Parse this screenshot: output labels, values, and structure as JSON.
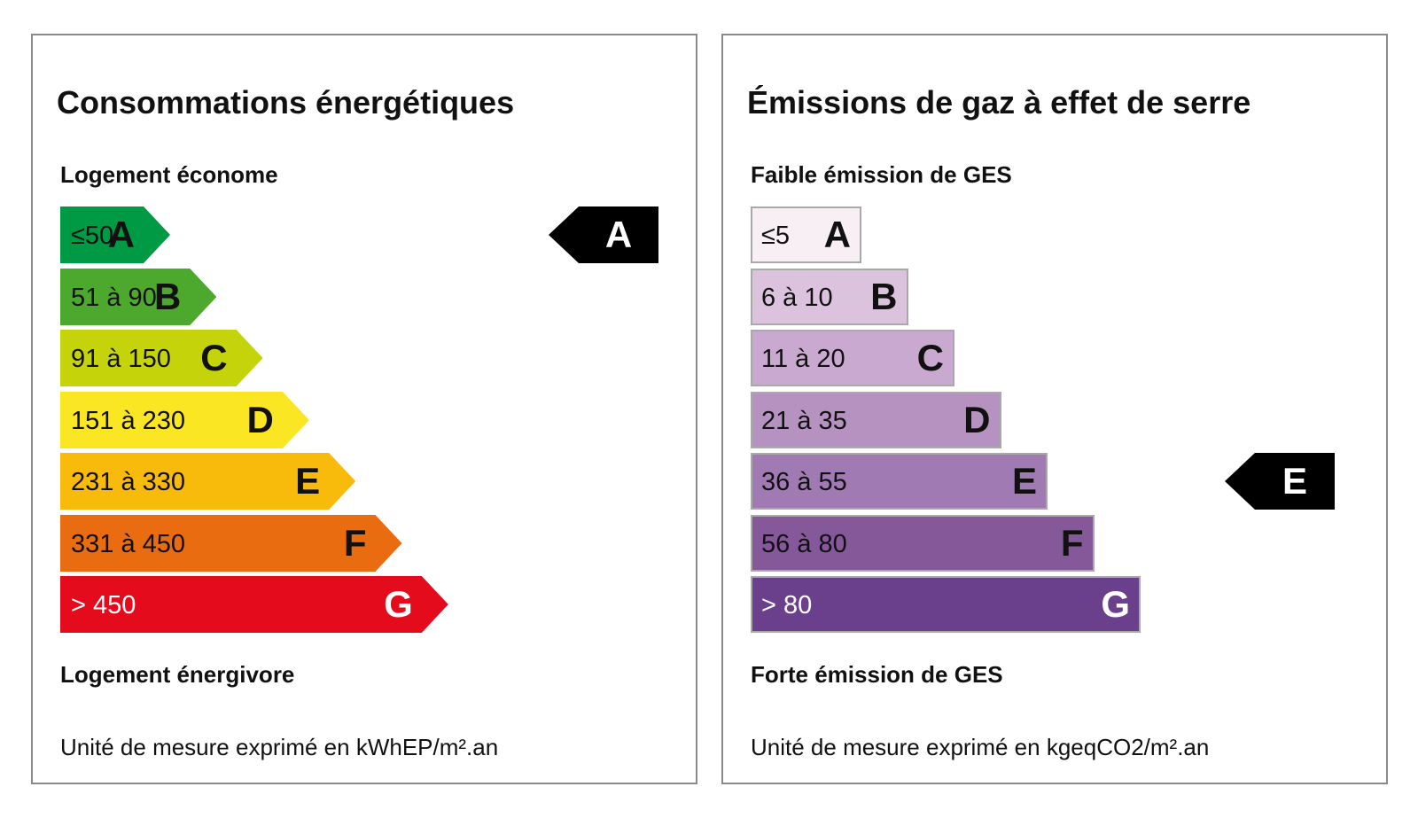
{
  "energy": {
    "title": "Consommations énergétiques",
    "scale_top": "Logement économe",
    "scale_bottom": "Logement énergivore",
    "unit": "Unité de mesure exprimé en kWhEP/m².an",
    "current_class": "A",
    "classes": [
      {
        "range": "≤50",
        "letter": "A",
        "color": "#009a44",
        "text_color": "#111111"
      },
      {
        "range": "51 à 90",
        "letter": "B",
        "color": "#4da92e",
        "text_color": "#111111"
      },
      {
        "range": "91 à 150",
        "letter": "C",
        "color": "#c4d30a",
        "text_color": "#111111"
      },
      {
        "range": "151 à 230",
        "letter": "D",
        "color": "#fbe624",
        "text_color": "#111111"
      },
      {
        "range": "231 à 330",
        "letter": "E",
        "color": "#f8bb0c",
        "text_color": "#111111"
      },
      {
        "range": "331 à 450",
        "letter": "F",
        "color": "#ea6c11",
        "text_color": "#111111"
      },
      {
        "range": "> 450",
        "letter": "G",
        "color": "#e30b1c",
        "text_color": "#ffffff"
      }
    ]
  },
  "ges": {
    "title": "Émissions de gaz à effet de serre",
    "scale_top": "Faible émission de GES",
    "scale_bottom": "Forte émission de GES",
    "unit": "Unité de mesure exprimé en kgeqCO2/m².an",
    "current_class": "E",
    "classes": [
      {
        "range": "≤5",
        "letter": "A",
        "color": "#f8eff5",
        "text_color": "#111111"
      },
      {
        "range": "6 à 10",
        "letter": "B",
        "color": "#dcc3dd",
        "text_color": "#111111"
      },
      {
        "range": "11 à 20",
        "letter": "C",
        "color": "#c9a9cf",
        "text_color": "#111111"
      },
      {
        "range": "21 à 35",
        "letter": "D",
        "color": "#b692c1",
        "text_color": "#111111"
      },
      {
        "range": "36 à 55",
        "letter": "E",
        "color": "#a07ab2",
        "text_color": "#111111"
      },
      {
        "range": "56 à 80",
        "letter": "F",
        "color": "#845899",
        "text_color": "#111111"
      },
      {
        "range": "> 80",
        "letter": "G",
        "color": "#6a3f8c",
        "text_color": "#ffffff"
      }
    ]
  }
}
